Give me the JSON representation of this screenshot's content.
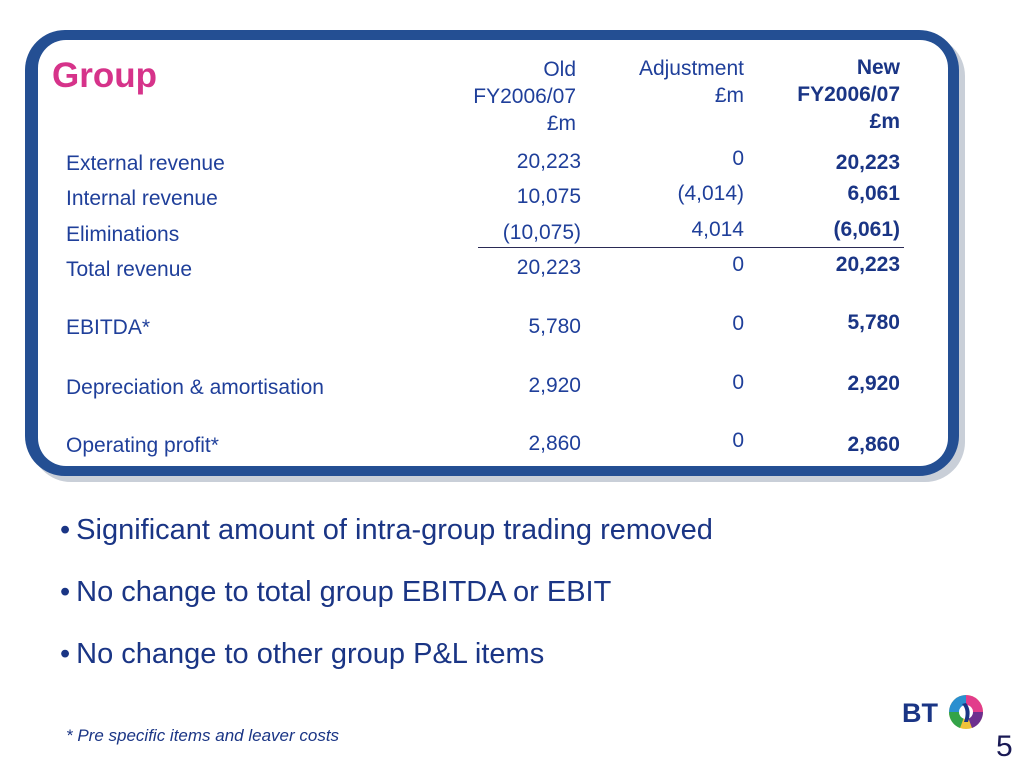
{
  "title": "Group",
  "headers": {
    "old": [
      "Old",
      "FY2006/07",
      "£m"
    ],
    "adjustment": [
      "Adjustment",
      "£m"
    ],
    "new": [
      "New",
      "FY2006/07",
      "£m"
    ]
  },
  "rows": [
    {
      "label": "External revenue",
      "old": "20,223",
      "adjustment": "0",
      "new": "20,223"
    },
    {
      "label": "Internal revenue",
      "old": "10,075",
      "adjustment": "(4,014)",
      "new": "6,061"
    },
    {
      "label": "Eliminations",
      "old": "(10,075)",
      "adjustment": "4,014",
      "new": "(6,061)"
    },
    {
      "label": "Total revenue",
      "old": "20,223",
      "adjustment": "0",
      "new": "20,223"
    },
    {
      "label": "EBITDA*",
      "old": "5,780",
      "adjustment": "0",
      "new": "5,780"
    },
    {
      "label": "Depreciation & amortisation",
      "old": "2,920",
      "adjustment": "0",
      "new": "2,920"
    },
    {
      "label": "Operating profit*",
      "old": "2,860",
      "adjustment": "0",
      "new": "2,860"
    }
  ],
  "bullets": [
    "Significant amount of intra-group trading removed",
    "No change to total group EBITDA or EBIT",
    "No change to other group P&L items"
  ],
  "footnote": "* Pre specific items and leaver costs",
  "logo_text": "BT",
  "page_number": "5",
  "colors": {
    "title": "#d6338a",
    "text": "#1f3f9a",
    "frame": "#244f93"
  }
}
